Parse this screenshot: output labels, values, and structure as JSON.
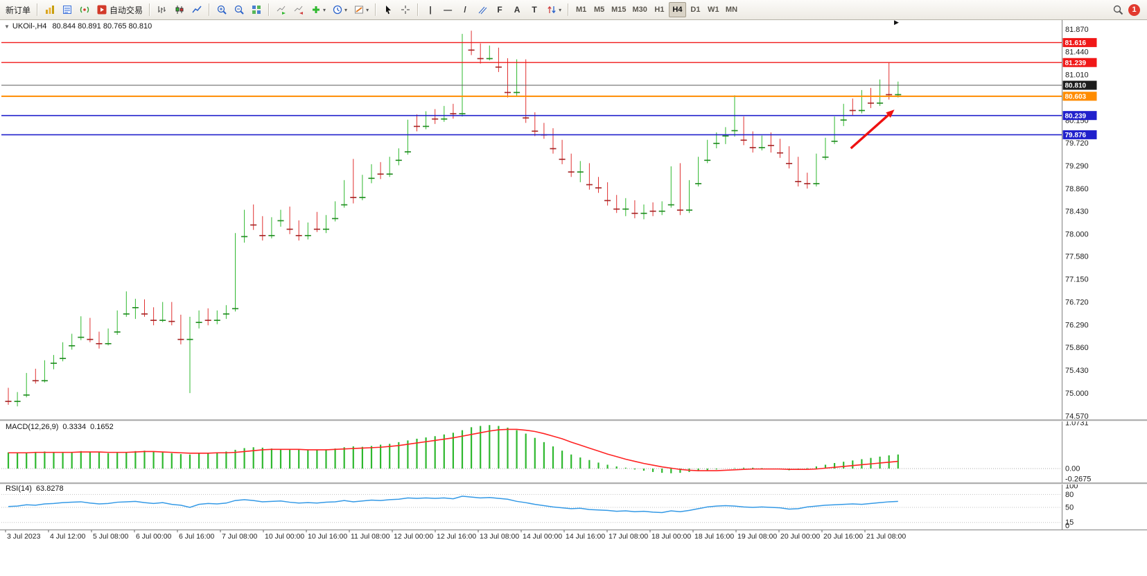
{
  "toolbar": {
    "new_order_label": "新订单",
    "autotrading_label": "自动交易",
    "timeframes": [
      "M1",
      "M5",
      "M15",
      "M30",
      "H1",
      "H4",
      "D1",
      "W1",
      "MN"
    ],
    "active_timeframe": "H4",
    "notification_count": "1"
  },
  "icons": {
    "collapse": "▼",
    "dropdown": "▾",
    "scroll_end": "▶",
    "vertical_line": "|",
    "horizontal_line": "—",
    "trendline": "/",
    "fibonacci": "F",
    "text_tool": "A",
    "label_tool": "T"
  },
  "chart_header": {
    "symbol": "UKOil-,H4",
    "ohlc": "80.844 80.891 80.765 80.810"
  },
  "chart_data": [
    {
      "type": "candlestick",
      "symbol": "UKOil-",
      "timeframe": "H4",
      "ylim": [
        74.45,
        82.05
      ],
      "y_ticks": [
        "81.870",
        "81.440",
        "81.010",
        "80.580",
        "80.150",
        "79.720",
        "79.290",
        "78.860",
        "78.430",
        "78.000",
        "77.580",
        "77.150",
        "76.720",
        "76.290",
        "75.860",
        "75.430",
        "75.000",
        "74.570"
      ],
      "x_labels": [
        "3 Jul 2023",
        "4 Jul 12:00",
        "5 Jul 08:00",
        "6 Jul 00:00",
        "6 Jul 16:00",
        "7 Jul 08:00",
        "10 Jul 00:00",
        "10 Jul 16:00",
        "11 Jul 08:00",
        "12 Jul 00:00",
        "12 Jul 16:00",
        "13 Jul 08:00",
        "14 Jul 00:00",
        "14 Jul 16:00",
        "17 Jul 08:00",
        "18 Jul 00:00",
        "18 Jul 16:00",
        "19 Jul 08:00",
        "20 Jul 00:00",
        "20 Jul 16:00",
        "21 Jul 08:00"
      ],
      "bull_color": "#2eb82e",
      "bear_color": "#e03030",
      "candles": [
        [
          75.05,
          75.1,
          74.78,
          74.85
        ],
        [
          74.85,
          75.02,
          74.75,
          74.97
        ],
        [
          74.97,
          75.38,
          74.92,
          75.32
        ],
        [
          75.32,
          75.46,
          75.18,
          75.24
        ],
        [
          75.24,
          75.62,
          75.2,
          75.57
        ],
        [
          75.57,
          75.72,
          75.45,
          75.66
        ],
        [
          75.66,
          75.96,
          75.6,
          75.9
        ],
        [
          75.9,
          76.12,
          75.82,
          76.06
        ],
        [
          76.06,
          76.45,
          76.0,
          76.18
        ],
        [
          76.18,
          76.42,
          75.96,
          76.02
        ],
        [
          76.02,
          76.16,
          75.84,
          75.94
        ],
        [
          75.94,
          76.22,
          75.9,
          76.16
        ],
        [
          76.16,
          76.56,
          76.1,
          76.5
        ],
        [
          76.5,
          76.92,
          76.44,
          76.62
        ],
        [
          76.62,
          76.78,
          76.4,
          76.72
        ],
        [
          76.72,
          76.77,
          76.44,
          76.5
        ],
        [
          76.5,
          76.62,
          76.28,
          76.38
        ],
        [
          76.38,
          76.72,
          76.34,
          76.62
        ],
        [
          76.62,
          76.72,
          76.28,
          76.36
        ],
        [
          76.36,
          76.48,
          75.92,
          76.02
        ],
        [
          76.02,
          76.44,
          75.0,
          76.34
        ],
        [
          76.34,
          76.56,
          76.22,
          76.5
        ],
        [
          76.5,
          76.6,
          76.28,
          76.38
        ],
        [
          76.38,
          76.56,
          76.3,
          76.5
        ],
        [
          76.5,
          76.66,
          76.4,
          76.6
        ],
        [
          76.6,
          78.02,
          76.54,
          77.96
        ],
        [
          77.96,
          78.46,
          77.84,
          78.4
        ],
        [
          78.4,
          78.56,
          78.08,
          78.18
        ],
        [
          78.18,
          78.34,
          77.88,
          77.98
        ],
        [
          77.98,
          78.32,
          77.92,
          78.26
        ],
        [
          78.26,
          78.46,
          78.14,
          78.4
        ],
        [
          78.4,
          78.52,
          78.0,
          78.1
        ],
        [
          78.1,
          78.26,
          77.88,
          77.98
        ],
        [
          77.98,
          78.22,
          77.9,
          78.16
        ],
        [
          78.16,
          78.42,
          78.04,
          78.1
        ],
        [
          78.1,
          78.36,
          78.02,
          78.3
        ],
        [
          78.3,
          78.62,
          78.24,
          78.56
        ],
        [
          78.56,
          79.02,
          78.5,
          78.96
        ],
        [
          78.96,
          79.42,
          78.58,
          78.7
        ],
        [
          78.7,
          79.12,
          78.64,
          79.06
        ],
        [
          79.06,
          79.32,
          78.96,
          79.26
        ],
        [
          79.26,
          79.36,
          79.04,
          79.14
        ],
        [
          79.14,
          79.46,
          79.08,
          79.4
        ],
        [
          79.4,
          79.62,
          79.3,
          79.56
        ],
        [
          79.56,
          80.16,
          79.5,
          80.1
        ],
        [
          80.1,
          80.26,
          79.94,
          80.04
        ],
        [
          80.04,
          80.32,
          79.98,
          80.26
        ],
        [
          80.26,
          80.36,
          80.08,
          80.18
        ],
        [
          80.18,
          80.42,
          80.12,
          80.36
        ],
        [
          80.36,
          80.46,
          80.18,
          80.28
        ],
        [
          80.28,
          81.78,
          80.22,
          81.72
        ],
        [
          81.72,
          81.84,
          81.38,
          81.48
        ],
        [
          81.48,
          81.6,
          81.22,
          81.32
        ],
        [
          81.32,
          81.56,
          81.28,
          81.46
        ],
        [
          81.46,
          81.52,
          81.06,
          81.16
        ],
        [
          81.16,
          81.32,
          80.58,
          80.68
        ],
        [
          80.68,
          81.3,
          80.6,
          81.24
        ],
        [
          81.24,
          81.3,
          80.1,
          80.2
        ],
        [
          80.2,
          80.3,
          79.85,
          79.95
        ],
        [
          79.95,
          80.1,
          79.8,
          79.88
        ],
        [
          79.88,
          80.0,
          79.52,
          79.62
        ],
        [
          79.62,
          79.78,
          79.32,
          79.42
        ],
        [
          79.42,
          79.52,
          79.08,
          79.18
        ],
        [
          79.18,
          79.38,
          78.98,
          79.28
        ],
        [
          79.28,
          79.34,
          78.84,
          78.94
        ],
        [
          78.94,
          79.08,
          78.78,
          78.88
        ],
        [
          78.88,
          78.98,
          78.54,
          78.64
        ],
        [
          78.64,
          78.74,
          78.4,
          78.48
        ],
        [
          78.48,
          78.68,
          78.34,
          78.58
        ],
        [
          78.58,
          78.64,
          78.3,
          78.4
        ],
        [
          78.4,
          78.56,
          78.28,
          78.5
        ],
        [
          78.5,
          78.6,
          78.34,
          78.44
        ],
        [
          78.44,
          78.62,
          78.36,
          78.56
        ],
        [
          78.56,
          79.28,
          78.5,
          79.22
        ],
        [
          79.22,
          79.34,
          78.36,
          78.46
        ],
        [
          78.46,
          79.02,
          78.4,
          78.96
        ],
        [
          78.96,
          79.46,
          78.9,
          79.4
        ],
        [
          79.4,
          79.78,
          79.34,
          79.72
        ],
        [
          79.72,
          79.92,
          79.62,
          79.86
        ],
        [
          79.86,
          80.02,
          79.7,
          79.96
        ],
        [
          79.96,
          80.62,
          79.84,
          80.12
        ],
        [
          80.12,
          80.22,
          79.68,
          79.78
        ],
        [
          79.78,
          79.94,
          79.54,
          79.64
        ],
        [
          79.64,
          79.86,
          79.58,
          79.8
        ],
        [
          79.8,
          79.92,
          79.54,
          79.68
        ],
        [
          79.68,
          79.8,
          79.44,
          79.54
        ],
        [
          79.54,
          79.66,
          79.24,
          79.34
        ],
        [
          79.34,
          79.46,
          78.9,
          79.0
        ],
        [
          79.0,
          79.16,
          78.86,
          78.96
        ],
        [
          78.96,
          79.52,
          78.9,
          79.46
        ],
        [
          79.46,
          79.82,
          79.4,
          79.76
        ],
        [
          79.76,
          80.22,
          79.7,
          80.16
        ],
        [
          80.16,
          80.46,
          80.04,
          80.4
        ],
        [
          80.4,
          80.56,
          80.24,
          80.34
        ],
        [
          80.34,
          80.72,
          80.28,
          80.66
        ],
        [
          80.66,
          80.76,
          80.38,
          80.48
        ],
        [
          80.48,
          80.92,
          80.42,
          80.86
        ],
        [
          80.86,
          81.24,
          80.54,
          80.64
        ],
        [
          80.64,
          80.88,
          80.58,
          80.81
        ]
      ],
      "levels": [
        {
          "price": 81.616,
          "label": "81.616",
          "color": "#f01818",
          "width": 1.4
        },
        {
          "price": 81.239,
          "label": "81.239",
          "color": "#f01818",
          "width": 1.4
        },
        {
          "price": 80.81,
          "label": "80.810",
          "color": "#5a5a5a",
          "width": 1,
          "label_bg": "#1c1c1c"
        },
        {
          "price": 80.603,
          "label": "80.603",
          "color": "#ff8c00",
          "width": 2
        },
        {
          "price": 80.239,
          "label": "80.239",
          "color": "#2020cc",
          "width": 1.6
        },
        {
          "price": 79.876,
          "label": "79.876",
          "color": "#2020cc",
          "width": 1.6
        }
      ],
      "arrow": {
        "from_index": 92.8,
        "from_price": 79.62,
        "to_index": 97.6,
        "to_price": 80.35,
        "color": "#ee1111"
      }
    },
    {
      "type": "bar",
      "name": "MACD(12,26,9)",
      "value_main": "0.3334",
      "value_signal": "0.1652",
      "hist_color": "#2eb82e",
      "signal_color": "#ff2222",
      "ylim": [
        -0.2675,
        1.0731
      ],
      "ticks": [
        "1.0731",
        "0.00",
        "-0.2675"
      ],
      "values": [
        0.38,
        0.36,
        0.37,
        0.39,
        0.4,
        0.38,
        0.37,
        0.39,
        0.41,
        0.4,
        0.38,
        0.36,
        0.37,
        0.39,
        0.41,
        0.42,
        0.4,
        0.38,
        0.36,
        0.34,
        0.33,
        0.35,
        0.37,
        0.38,
        0.4,
        0.44,
        0.48,
        0.5,
        0.49,
        0.47,
        0.46,
        0.45,
        0.44,
        0.43,
        0.44,
        0.45,
        0.47,
        0.5,
        0.52,
        0.51,
        0.53,
        0.56,
        0.58,
        0.62,
        0.66,
        0.7,
        0.73,
        0.76,
        0.8,
        0.84,
        0.9,
        0.97,
        1.0,
        1.02,
        1.0,
        0.96,
        0.9,
        0.82,
        0.72,
        0.62,
        0.52,
        0.42,
        0.33,
        0.26,
        0.2,
        0.14,
        0.09,
        0.05,
        0.02,
        -0.02,
        -0.05,
        -0.08,
        -0.1,
        -0.11,
        -0.1,
        -0.08,
        -0.06,
        -0.04,
        -0.02,
        0.0,
        0.01,
        0.02,
        0.02,
        0.01,
        0.0,
        -0.02,
        -0.04,
        -0.03,
        0.01,
        0.05,
        0.09,
        0.13,
        0.16,
        0.19,
        0.22,
        0.25,
        0.28,
        0.31,
        0.33
      ],
      "signal": [
        0.37,
        0.37,
        0.37,
        0.38,
        0.38,
        0.38,
        0.38,
        0.38,
        0.39,
        0.39,
        0.39,
        0.38,
        0.38,
        0.38,
        0.39,
        0.4,
        0.4,
        0.39,
        0.38,
        0.37,
        0.36,
        0.36,
        0.36,
        0.37,
        0.37,
        0.38,
        0.4,
        0.42,
        0.44,
        0.45,
        0.45,
        0.45,
        0.45,
        0.44,
        0.44,
        0.44,
        0.45,
        0.46,
        0.47,
        0.48,
        0.49,
        0.5,
        0.52,
        0.54,
        0.57,
        0.6,
        0.63,
        0.66,
        0.69,
        0.72,
        0.76,
        0.8,
        0.84,
        0.88,
        0.91,
        0.92,
        0.92,
        0.9,
        0.87,
        0.82,
        0.76,
        0.7,
        0.62,
        0.55,
        0.48,
        0.41,
        0.34,
        0.28,
        0.22,
        0.17,
        0.12,
        0.08,
        0.04,
        0.01,
        -0.02,
        -0.04,
        -0.05,
        -0.05,
        -0.05,
        -0.04,
        -0.03,
        -0.02,
        -0.01,
        -0.01,
        -0.01,
        -0.01,
        -0.02,
        -0.02,
        -0.02,
        -0.01,
        0.01,
        0.03,
        0.05,
        0.07,
        0.09,
        0.11,
        0.13,
        0.15,
        0.17
      ]
    },
    {
      "type": "line",
      "name": "RSI(14)",
      "value": "63.8278",
      "color": "#3399e6",
      "ylim": [
        0,
        100
      ],
      "ticks": [
        "100",
        "80",
        "50",
        "15",
        "0"
      ],
      "levels": [
        80,
        50,
        15
      ],
      "values": [
        52,
        53,
        56,
        55,
        58,
        59,
        61,
        62,
        63,
        60,
        58,
        59,
        62,
        63,
        64,
        61,
        59,
        61,
        57,
        55,
        50,
        57,
        59,
        58,
        60,
        66,
        68,
        66,
        63,
        64,
        65,
        62,
        60,
        61,
        60,
        62,
        63,
        66,
        63,
        65,
        67,
        66,
        68,
        69,
        72,
        71,
        72,
        71,
        72,
        70,
        76,
        74,
        72,
        73,
        71,
        69,
        64,
        61,
        57,
        54,
        51,
        49,
        47,
        48,
        45,
        44,
        43,
        41,
        42,
        40,
        41,
        39,
        38,
        42,
        40,
        43,
        47,
        51,
        53,
        54,
        53,
        51,
        50,
        51,
        50,
        49,
        46,
        47,
        51,
        53,
        55,
        56,
        57,
        58,
        57,
        59,
        61,
        63,
        64
      ]
    }
  ]
}
